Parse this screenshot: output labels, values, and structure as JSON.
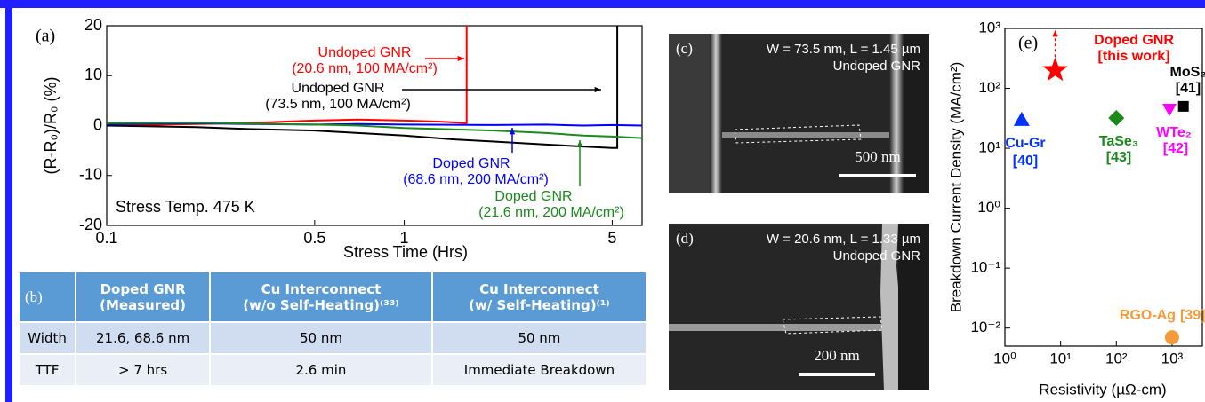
{
  "chart_data": [
    {
      "type": "line",
      "label": "(a)",
      "ylabel": "(R-R₀)/R₀ (%)",
      "xlabel": "Stress Time (Hrs)",
      "annotation": "Stress Temp. 475 K",
      "xlog": true,
      "xlim": [
        0.1,
        6.3
      ],
      "xticks": [
        0.1,
        0.5,
        1,
        5
      ],
      "ylim": [
        -20,
        20
      ],
      "yticks": [
        -20,
        -10,
        0,
        10,
        20
      ],
      "series": [
        {
          "name": "Undoped GNR",
          "detail": "(20.6 nm, 100 MA/cm²)",
          "color": "#ff0000",
          "x": [
            0.1,
            0.2,
            0.3,
            0.4,
            0.5,
            0.7,
            1,
            1.3,
            1.62,
            1.62
          ],
          "values": [
            0,
            0.3,
            0.5,
            0.8,
            1,
            1.2,
            1,
            0.8,
            0.5,
            20
          ]
        },
        {
          "name": "Undoped GNR",
          "detail": "(73.5 nm, 100 MA/cm²)",
          "color": "#000000",
          "x": [
            0.1,
            0.2,
            0.3,
            0.5,
            0.7,
            1,
            1.5,
            2,
            3,
            4,
            5,
            5.2,
            5.2
          ],
          "values": [
            0,
            -0.3,
            -0.7,
            -1,
            -1.5,
            -2,
            -2.8,
            -3.2,
            -3.8,
            -4.2,
            -4.5,
            -4.5,
            20
          ]
        },
        {
          "name": "Doped GNR",
          "detail": "(68.6 nm, 200 MA/cm²)",
          "color": "#0000ff",
          "x": [
            0.1,
            0.2,
            0.3,
            0.5,
            0.7,
            1,
            2,
            3,
            4,
            5,
            6.3
          ],
          "values": [
            0.3,
            0.5,
            0.3,
            0.2,
            0.3,
            0.2,
            0.1,
            0.2,
            0,
            0.1,
            0
          ]
        },
        {
          "name": "Doped GNR",
          "detail": "(21.6 nm, 200 MA/cm²)",
          "color": "#1a8a1a",
          "x": [
            0.1,
            0.2,
            0.3,
            0.5,
            0.7,
            1,
            2,
            3,
            4,
            5,
            6.3
          ],
          "values": [
            0.5,
            0.6,
            0.4,
            0.2,
            0,
            -0.5,
            -1,
            -1.5,
            -2,
            -2.2,
            -2.5
          ]
        }
      ]
    },
    {
      "type": "scatter",
      "label": "(e)",
      "ylabel": "Breakdown Current Density (MA/cm²)",
      "xlabel": "Resistivity (µΩ-cm)",
      "xlog": true,
      "ylog": true,
      "xlim": [
        1,
        3500
      ],
      "ylim": [
        0.005,
        1000
      ],
      "xticks": [
        {
          "value": 1,
          "label": "10⁰"
        },
        {
          "value": 10,
          "label": "10¹"
        },
        {
          "value": 100,
          "label": "10²"
        },
        {
          "value": 1000,
          "label": "10³"
        }
      ],
      "yticks": [
        {
          "value": 0.01,
          "label": "10⁻²"
        },
        {
          "value": 0.1,
          "label": "10⁻¹"
        },
        {
          "value": 1,
          "label": "10⁰"
        },
        {
          "value": 10,
          "label": "10¹"
        },
        {
          "value": 100,
          "label": "10²"
        },
        {
          "value": 1000,
          "label": "10³"
        }
      ],
      "series": [
        {
          "name": "Doped GNR",
          "ref": "[this work]",
          "color": "#ff0000",
          "marker": "star",
          "x": [
            8
          ],
          "values": [
            200
          ]
        },
        {
          "name": "Cu-Gr",
          "ref": "[40]",
          "color": "#0033ff",
          "marker": "triangle",
          "x": [
            2
          ],
          "values": [
            30
          ]
        },
        {
          "name": "TaSe₃",
          "ref": "[43]",
          "color": "#1a8a1a",
          "marker": "diamond",
          "x": [
            100
          ],
          "values": [
            32
          ]
        },
        {
          "name": "WTe₂",
          "ref": "[42]",
          "color": "#ff00ff",
          "marker": "triangle-down",
          "x": [
            900
          ],
          "values": [
            45
          ]
        },
        {
          "name": "MoS₂",
          "ref": "[41]",
          "color": "#000000",
          "marker": "square",
          "x": [
            1600
          ],
          "values": [
            50
          ]
        },
        {
          "name": "RGO-Ag",
          "ref": "[39]",
          "color": "#f59a3a",
          "marker": "circle",
          "x": [
            1000
          ],
          "values": [
            0.007
          ]
        }
      ]
    }
  ],
  "table": {
    "label": "(b)",
    "header": [
      [
        "Doped GNR",
        "(Measured)"
      ],
      [
        "Cu Interconnect",
        "(w/o Self-Heating)⁽³³⁾"
      ],
      [
        "Cu Interconnect",
        "(w/ Self-Heating)⁽¹⁾"
      ]
    ],
    "rows": [
      [
        "Width",
        "21.6, 68.6 nm",
        "50 nm",
        "50 nm"
      ],
      [
        "TTF",
        "> 7 hrs",
        "2.6 min",
        "Immediate Breakdown"
      ]
    ]
  },
  "panels": [
    {
      "label": "(c)",
      "caption": "W = 73.5 nm, L = 1.45 µm",
      "sample": "Undoped GNR",
      "scale_bar": "500 nm"
    },
    {
      "label": "(d)",
      "caption": "W = 20.6 nm, L = 1.33 µm",
      "sample": "Undoped GNR",
      "scale_bar": "200 nm"
    }
  ]
}
